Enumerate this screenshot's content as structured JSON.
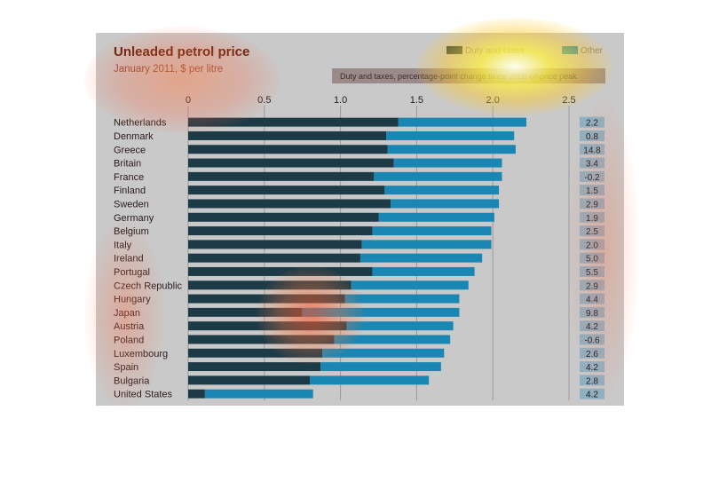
{
  "chart_data": {
    "type": "bar",
    "stacked": true,
    "orientation": "horizontal",
    "title": "Unleaded petrol price",
    "subtitle": "January 2011, $ per litre",
    "legend": [
      {
        "name": "Duty and taxes",
        "color": "#1d3a47"
      },
      {
        "name": "Other",
        "color": "#1a86b3"
      }
    ],
    "legend_placement": "top-right",
    "side_label": "Duty and taxes, percentage-point change since 2008 oil-price peak",
    "xlim": [
      0,
      2.5
    ],
    "x_ticks": [
      "0",
      "0.5",
      "1.0",
      "1.5",
      "2.0",
      "2.5"
    ],
    "grid": true,
    "categories": [
      "Netherlands",
      "Denmark",
      "Greece",
      "Britain",
      "France",
      "Finland",
      "Sweden",
      "Germany",
      "Belgium",
      "Italy",
      "Ireland",
      "Portugal",
      "Czech Republic",
      "Hungary",
      "Japan",
      "Austria",
      "Poland",
      "Luxembourg",
      "Spain",
      "Bulgaria",
      "United States"
    ],
    "series": [
      {
        "name": "Duty and taxes",
        "values": [
          1.38,
          1.3,
          1.31,
          1.35,
          1.22,
          1.29,
          1.33,
          1.25,
          1.21,
          1.14,
          1.13,
          1.21,
          1.07,
          1.03,
          0.75,
          1.04,
          0.96,
          0.88,
          0.87,
          0.8,
          0.11
        ]
      },
      {
        "name": "Other",
        "values": [
          0.84,
          0.84,
          0.84,
          0.71,
          0.84,
          0.75,
          0.71,
          0.76,
          0.78,
          0.85,
          0.8,
          0.67,
          0.77,
          0.75,
          1.03,
          0.7,
          0.76,
          0.8,
          0.79,
          0.78,
          0.71
        ]
      }
    ],
    "change_values": [
      "2.2",
      "0.8",
      "14.8",
      "3.4",
      "-0.2",
      "1.5",
      "2.9",
      "1.9",
      "2.5",
      "2.0",
      "5.0",
      "5.5",
      "2.9",
      "4.4",
      "9.8",
      "4.2",
      "-0.6",
      "2.6",
      "4.2",
      "2.8",
      "4.2"
    ]
  },
  "colors": {
    "panel_bg": "#c9c9c9",
    "title": "#5a1d0c",
    "subtitle": "#8a4a3a",
    "label": "#2a1a1a",
    "duty": "#1d3a47",
    "other": "#1a86b3",
    "change_box": "#8fb0c2",
    "side_label_bg": "#9a8a8a",
    "grid": "#9a9a9a"
  }
}
